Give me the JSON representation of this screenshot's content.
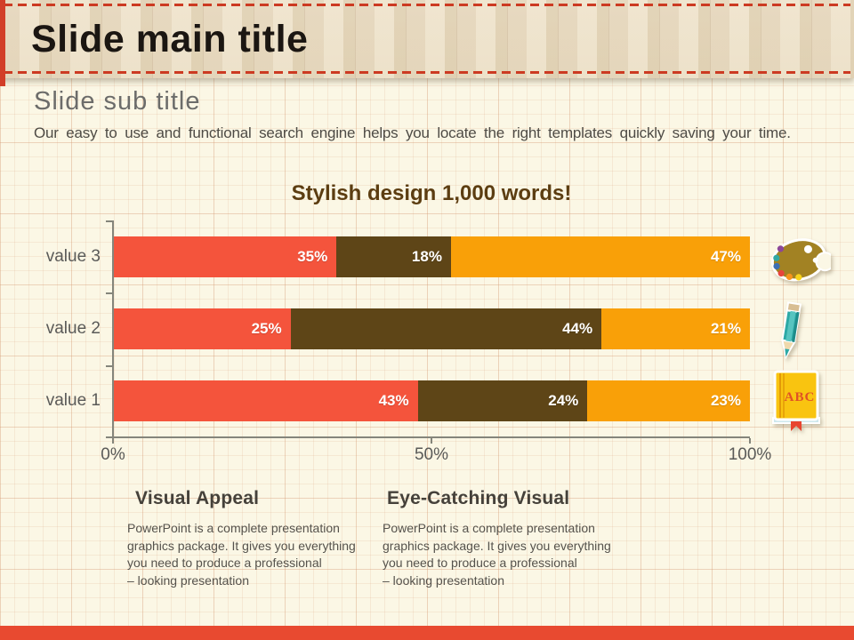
{
  "slide": {
    "main_title": "Slide main title",
    "sub_title": "Slide sub title",
    "body_text": "Our easy to use and functional search engine helps you locate the right templates quickly saving your time."
  },
  "chart_data": {
    "type": "bar",
    "orientation": "horizontal",
    "stacked": true,
    "percent_of_row_total": true,
    "title": "Stylish design 1,000 words!",
    "categories": [
      "value 3",
      "value 2",
      "value 1"
    ],
    "series": [
      {
        "name": "segment-red",
        "color": "#F4543C",
        "values": [
          35,
          25,
          43
        ]
      },
      {
        "name": "segment-brown",
        "color": "#5E4517",
        "values": [
          18,
          44,
          24
        ]
      },
      {
        "name": "segment-orange",
        "color": "#F9A008",
        "values": [
          47,
          21,
          23
        ]
      }
    ],
    "value_label_suffix": "%",
    "x_ticks": [
      "0%",
      "50%",
      "100%"
    ],
    "xlim": [
      0,
      100
    ],
    "legend": "none",
    "grid": false
  },
  "icons": {
    "palette": "palette-icon",
    "pencil": "pencil-icon",
    "book": "abc-book-icon",
    "book_label": "ABC"
  },
  "callouts": [
    {
      "title": "Visual Appeal",
      "body_lines": [
        "PowerPoint is a complete presentation",
        "graphics package. It gives you everything",
        "you need to produce a professional",
        " – looking presentation"
      ]
    },
    {
      "title": "Eye-Catching Visual",
      "body_lines": [
        "PowerPoint is a complete presentation",
        "graphics package. It gives you everything",
        "you need to produce a professional",
        " – looking presentation"
      ]
    }
  ],
  "colors": {
    "accent_red": "#D23E28",
    "footer_red": "#E84A30",
    "bar_red": "#F4543C",
    "bar_brown": "#5E4517",
    "bar_orange": "#F9A008"
  }
}
